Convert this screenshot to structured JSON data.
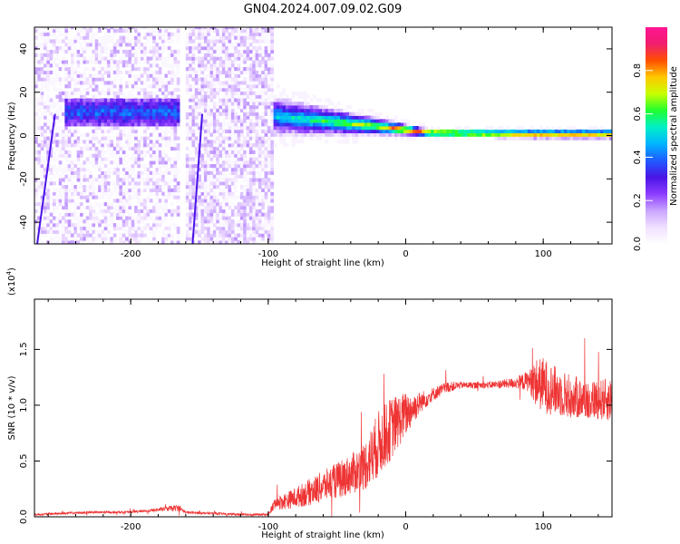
{
  "figure": {
    "title": "GN04.2024.007.09.02.G09"
  },
  "chart_data": [
    {
      "type": "heatmap",
      "name": "spectrogram",
      "xlabel": "Height of straight line (km)",
      "ylabel": "Frequency (Hz)",
      "xlim": [
        -270,
        150
      ],
      "ylim": [
        -50,
        50
      ],
      "xticks": [
        -200,
        -100,
        0,
        100
      ],
      "xtick_labels": [
        "-200",
        "-100",
        "0",
        "100"
      ],
      "yticks": [
        -40,
        -20,
        0,
        20,
        40
      ],
      "ytick_labels": [
        "-40",
        "-20",
        "0",
        "20",
        "40"
      ],
      "colorbar": {
        "label": "Normalized spectral amplitude",
        "range": [
          0,
          1
        ],
        "ticks": [
          0.0,
          0.2,
          0.4,
          0.6,
          0.8
        ],
        "tick_labels": [
          "0.0",
          "0.2",
          "0.4",
          "0.6",
          "0.8"
        ],
        "colormap": [
          "#ffffff",
          "#f0e0ff",
          "#c9a5ff",
          "#8c3cff",
          "#4a14e6",
          "#1f5cff",
          "#00b4ff",
          "#00f0c8",
          "#20ff30",
          "#c8ff00",
          "#ffc800",
          "#ff5000",
          "#f01e6e",
          "#ff1493"
        ]
      },
      "features": {
        "noise_regions_km": [
          [
            -270,
            -165
          ],
          [
            -162,
            -97
          ]
        ],
        "bright_band_km": [
          -250,
          -165
        ],
        "bright_band_freq_hz": 10,
        "converging_signal_km": [
          -97,
          150
        ],
        "signal_freq_hz_at_start": 8,
        "signal_freq_hz_at_end": 0
      },
      "grid": false
    },
    {
      "type": "line",
      "name": "snr",
      "xlabel": "Height of straight line (km)",
      "ylabel": "SNR (10 * v/v)",
      "y_multiplier": "(x10^4)",
      "xlim": [
        -270,
        150
      ],
      "ylim": [
        0,
        1.95
      ],
      "xticks": [
        -200,
        -100,
        0,
        100
      ],
      "xtick_labels": [
        "-200",
        "-100",
        "0",
        "100"
      ],
      "yticks": [
        0.0,
        0.5,
        1.0,
        1.5
      ],
      "ytick_labels": [
        "0.0",
        "0.5",
        "1.0",
        "1.5"
      ],
      "series": [
        {
          "color": "#ee3333",
          "x": [
            -270,
            -250,
            -230,
            -210,
            -190,
            -175,
            -165,
            -160,
            -140,
            -120,
            -100,
            -95,
            -85,
            -70,
            -55,
            -40,
            -30,
            -20,
            -10,
            0,
            10,
            20,
            30,
            40,
            50,
            60,
            70,
            80,
            90,
            95,
            100,
            110,
            120,
            130,
            140,
            150
          ],
          "y": [
            0.02,
            0.03,
            0.04,
            0.04,
            0.05,
            0.07,
            0.08,
            0.04,
            0.03,
            0.02,
            0.02,
            0.12,
            0.15,
            0.22,
            0.3,
            0.38,
            0.45,
            0.65,
            0.8,
            0.92,
            1.02,
            1.1,
            1.16,
            1.18,
            1.18,
            1.18,
            1.19,
            1.2,
            1.22,
            1.2,
            1.18,
            1.12,
            1.08,
            1.05,
            1.05,
            1.05
          ],
          "noise_amplitude": [
            0.01,
            0.01,
            0.01,
            0.01,
            0.01,
            0.02,
            0.03,
            0.01,
            0.01,
            0.01,
            0.01,
            0.06,
            0.08,
            0.12,
            0.15,
            0.18,
            0.22,
            0.3,
            0.28,
            0.2,
            0.1,
            0.06,
            0.05,
            0.03,
            0.03,
            0.03,
            0.04,
            0.05,
            0.1,
            0.22,
            0.25,
            0.22,
            0.2,
            0.18,
            0.18,
            0.2
          ]
        }
      ],
      "grid": false
    }
  ]
}
